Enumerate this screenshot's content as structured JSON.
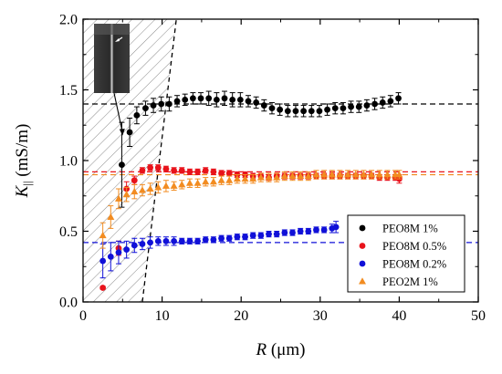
{
  "chart_data": {
    "type": "scatter",
    "xlabel": {
      "symbol": "R",
      "unit": " (μm)"
    },
    "ylabel": {
      "symbol": "K",
      "subscript": "||",
      "unit": " (mS/m)"
    },
    "xlim": [
      0,
      50
    ],
    "ylim": [
      0,
      2.0
    ],
    "xticks": [
      "0",
      "10",
      "20",
      "30",
      "40",
      "50"
    ],
    "yticks": [
      "0.0",
      "0.5",
      "1.0",
      "1.5",
      "2.0"
    ],
    "grid": false,
    "legend_position": "bottom-right",
    "shaded_region": {
      "pattern": "diagonal-hatch",
      "boundary_line": {
        "x1": 7.5,
        "y1": 0,
        "x2": 11.8,
        "y2": 2.0,
        "style": "dashed"
      }
    },
    "inset_image": {
      "description": "grayscale micrograph",
      "arrow_from_x": 5.0,
      "arrow_from_y": 1.17
    },
    "series": [
      {
        "name": "PEO8M 1%",
        "color": "#000000",
        "marker": "circle",
        "reference_line": 1.4,
        "x": [
          4.9,
          5.9,
          6.8,
          7.9,
          8.9,
          9.9,
          10.9,
          11.9,
          12.9,
          13.9,
          14.9,
          15.9,
          16.9,
          17.9,
          18.9,
          19.9,
          20.9,
          21.9,
          22.9,
          23.9,
          24.9,
          25.9,
          26.9,
          27.9,
          28.9,
          29.9,
          30.9,
          31.9,
          32.9,
          33.9,
          34.9,
          35.9,
          36.9,
          37.9,
          38.9,
          39.9
        ],
        "y": [
          0.97,
          1.2,
          1.32,
          1.37,
          1.39,
          1.4,
          1.4,
          1.42,
          1.43,
          1.44,
          1.44,
          1.44,
          1.43,
          1.44,
          1.43,
          1.43,
          1.42,
          1.41,
          1.39,
          1.37,
          1.36,
          1.35,
          1.35,
          1.35,
          1.35,
          1.35,
          1.36,
          1.37,
          1.37,
          1.38,
          1.38,
          1.39,
          1.4,
          1.41,
          1.42,
          1.44
        ],
        "err": [
          0.3,
          0.1,
          0.06,
          0.05,
          0.05,
          0.05,
          0.05,
          0.04,
          0.04,
          0.04,
          0.04,
          0.05,
          0.05,
          0.05,
          0.05,
          0.05,
          0.04,
          0.04,
          0.04,
          0.04,
          0.04,
          0.04,
          0.04,
          0.04,
          0.04,
          0.04,
          0.04,
          0.04,
          0.04,
          0.04,
          0.04,
          0.04,
          0.04,
          0.04,
          0.04,
          0.04
        ]
      },
      {
        "name": "PEO8M 0.5%",
        "color": "#e8131b",
        "marker": "circle",
        "reference_line": 0.92,
        "x": [
          2.5,
          4.5,
          5.5,
          6.5,
          7.5,
          8.5,
          9.5,
          10.5,
          11.5,
          12.5,
          13.5,
          14.5,
          15.5,
          16.5,
          17.5,
          18.5,
          19.5,
          20.5,
          21.5,
          22.5,
          23.5,
          24.5,
          25.5,
          26.5,
          27.5,
          28.5,
          29.5,
          30.5,
          31.5,
          32.5,
          33.5,
          34.5,
          35.5,
          36.5,
          37.5,
          38.5,
          39.5,
          40.0
        ],
        "y": [
          0.1,
          0.38,
          0.8,
          0.86,
          0.93,
          0.95,
          0.95,
          0.94,
          0.93,
          0.93,
          0.92,
          0.92,
          0.93,
          0.92,
          0.91,
          0.91,
          0.9,
          0.9,
          0.89,
          0.89,
          0.88,
          0.89,
          0.89,
          0.89,
          0.89,
          0.89,
          0.89,
          0.89,
          0.89,
          0.89,
          0.89,
          0.89,
          0.89,
          0.89,
          0.88,
          0.88,
          0.88,
          0.87
        ],
        "err": [
          0.01,
          0.05,
          0.05,
          0.03,
          0.02,
          0.02,
          0.02,
          0.02,
          0.02,
          0.02,
          0.02,
          0.02,
          0.02,
          0.02,
          0.02,
          0.02,
          0.02,
          0.02,
          0.02,
          0.02,
          0.02,
          0.02,
          0.02,
          0.02,
          0.02,
          0.02,
          0.02,
          0.02,
          0.02,
          0.02,
          0.02,
          0.02,
          0.02,
          0.02,
          0.02,
          0.02,
          0.02,
          0.03
        ]
      },
      {
        "name": "PEO8M 0.2%",
        "color": "#1010d8",
        "marker": "circle",
        "reference_line": 0.42,
        "x": [
          2.5,
          3.5,
          4.5,
          5.5,
          6.5,
          7.5,
          8.5,
          9.5,
          10.5,
          11.5,
          12.5,
          13.5,
          14.5,
          15.5,
          16.5,
          17.5,
          18.5,
          19.5,
          20.5,
          21.5,
          22.5,
          23.5,
          24.5,
          25.5,
          26.5,
          27.5,
          28.5,
          29.5,
          30.5,
          31.5,
          32.0
        ],
        "y": [
          0.29,
          0.32,
          0.35,
          0.37,
          0.4,
          0.41,
          0.42,
          0.43,
          0.43,
          0.43,
          0.43,
          0.43,
          0.43,
          0.44,
          0.44,
          0.45,
          0.45,
          0.46,
          0.46,
          0.47,
          0.47,
          0.48,
          0.48,
          0.49,
          0.49,
          0.5,
          0.5,
          0.51,
          0.51,
          0.52,
          0.53
        ],
        "err": [
          0.12,
          0.1,
          0.08,
          0.06,
          0.05,
          0.04,
          0.04,
          0.03,
          0.03,
          0.03,
          0.02,
          0.02,
          0.02,
          0.02,
          0.02,
          0.02,
          0.02,
          0.02,
          0.02,
          0.02,
          0.02,
          0.02,
          0.02,
          0.02,
          0.02,
          0.02,
          0.02,
          0.02,
          0.02,
          0.03,
          0.04
        ]
      },
      {
        "name": "PEO2M 1%",
        "color": "#f28c21",
        "marker": "triangle",
        "reference_line": 0.9,
        "x": [
          2.5,
          3.5,
          4.5,
          5.5,
          6.5,
          7.5,
          8.5,
          9.5,
          10.5,
          11.5,
          12.5,
          13.5,
          14.5,
          15.5,
          16.5,
          17.5,
          18.5,
          19.5,
          20.5,
          21.5,
          22.5,
          23.5,
          24.5,
          25.5,
          26.5,
          27.5,
          28.5,
          29.5,
          30.5,
          31.5,
          32.5,
          33.5,
          34.5,
          35.5,
          36.5,
          37.5,
          38.5,
          39.5,
          40.0
        ],
        "y": [
          0.47,
          0.6,
          0.73,
          0.76,
          0.78,
          0.79,
          0.8,
          0.81,
          0.82,
          0.82,
          0.83,
          0.84,
          0.84,
          0.85,
          0.85,
          0.86,
          0.86,
          0.87,
          0.87,
          0.87,
          0.88,
          0.88,
          0.88,
          0.89,
          0.89,
          0.89,
          0.89,
          0.9,
          0.9,
          0.9,
          0.9,
          0.9,
          0.9,
          0.9,
          0.9,
          0.9,
          0.9,
          0.9,
          0.9
        ],
        "err": [
          0.09,
          0.08,
          0.07,
          0.05,
          0.05,
          0.04,
          0.04,
          0.04,
          0.04,
          0.03,
          0.03,
          0.03,
          0.03,
          0.03,
          0.03,
          0.03,
          0.03,
          0.03,
          0.03,
          0.03,
          0.03,
          0.03,
          0.03,
          0.03,
          0.03,
          0.03,
          0.03,
          0.03,
          0.03,
          0.03,
          0.03,
          0.03,
          0.03,
          0.03,
          0.03,
          0.03,
          0.03,
          0.03,
          0.03
        ]
      }
    ]
  }
}
